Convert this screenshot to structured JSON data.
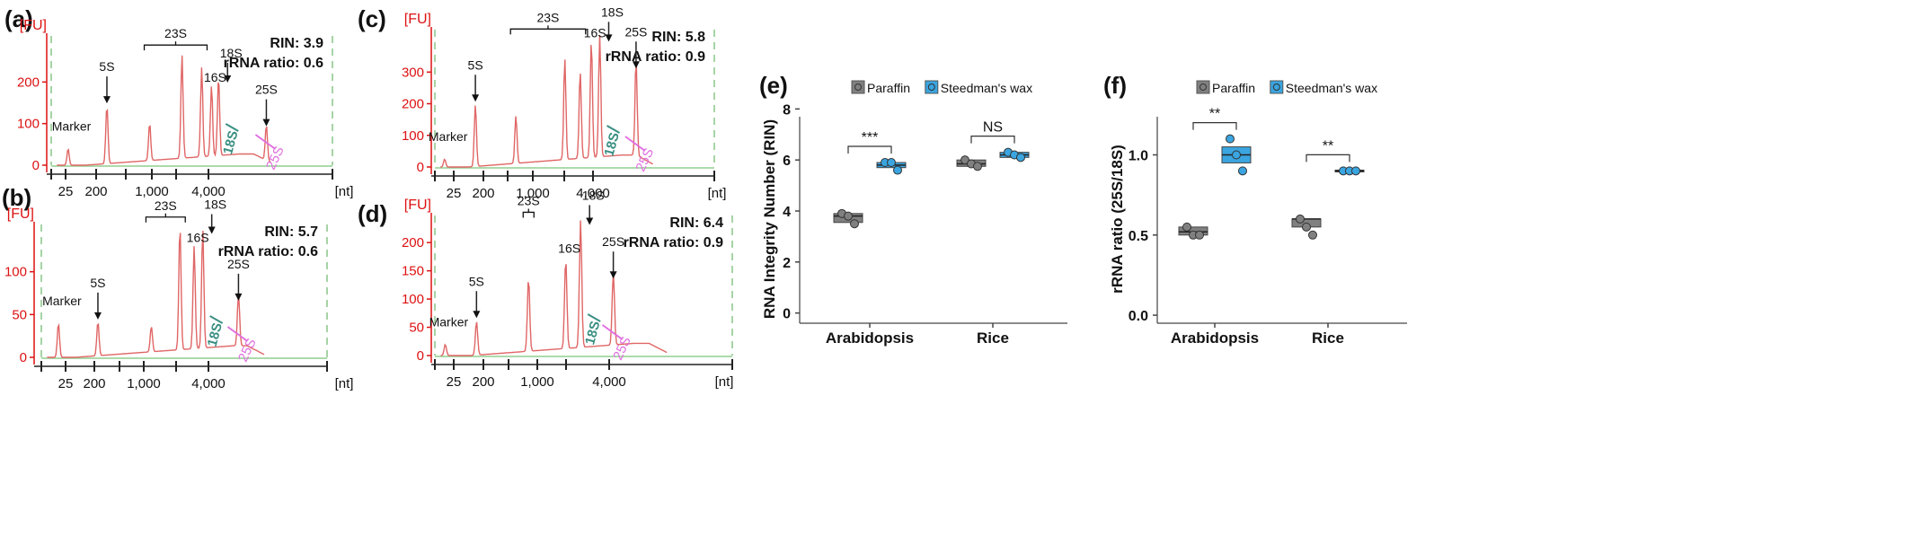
{
  "colors": {
    "trace": "#e06666",
    "fu_axis": "#dd1111",
    "baseline": "#8fcf8f",
    "ladder_dash": "#88c688",
    "label_18s": "#3a8f83",
    "label_25s": "#e070e0",
    "paraffin": "#808080",
    "steedman": "#3aa5e0",
    "axis": "#222222"
  },
  "chart_data": [
    {
      "type": "line",
      "panel": "(a)",
      "y_unit": "[FU]",
      "x_unit": "[nt]",
      "x_ticks": [
        "25",
        "200",
        "1,000",
        "4,000"
      ],
      "yticks": [
        0,
        100,
        200
      ],
      "ylim": [
        0,
        300
      ],
      "rin_text": "RIN: 3.9",
      "ratio_text": "rRNA ratio: 0.6",
      "labels": {
        "marker": "Marker",
        "s5": "5S",
        "s23": "23S",
        "s16": "16S",
        "s18": "18S",
        "s25": "25S",
        "g18": "18S",
        "g25": "25S"
      },
      "peaks": [
        [
          0.06,
          40
        ],
        [
          0.198,
          140
        ],
        [
          0.35,
          90
        ],
        [
          0.465,
          250
        ],
        [
          0.535,
          215
        ],
        [
          0.57,
          170
        ],
        [
          0.595,
          190
        ],
        [
          0.765,
          85
        ]
      ]
    },
    {
      "type": "line",
      "panel": "(b)",
      "y_unit": "[FU]",
      "x_unit": "[nt]",
      "x_ticks": [
        "25",
        "200",
        "1,000",
        "4,000"
      ],
      "yticks": [
        0,
        50,
        100
      ],
      "ylim": [
        0,
        150
      ],
      "rin_text": "RIN: 5.7",
      "ratio_text": "rRNA ratio: 0.6",
      "labels": {
        "marker": "Marker",
        "s5": "5S",
        "s23": "23S",
        "s16": "16S",
        "s18": "18S",
        "s25": "25S",
        "g18": "18S",
        "g25": "25S"
      },
      "peaks": [
        [
          0.06,
          40
        ],
        [
          0.198,
          40
        ],
        [
          0.385,
          30
        ],
        [
          0.485,
          145
        ],
        [
          0.535,
          120
        ],
        [
          0.565,
          140
        ],
        [
          0.69,
          62
        ]
      ]
    },
    {
      "type": "line",
      "panel": "(c)",
      "y_unit": "[FU]",
      "x_unit": "[nt]",
      "x_ticks": [
        "25",
        "200",
        "1,000",
        "4,000"
      ],
      "yticks": [
        0,
        100,
        200,
        300
      ],
      "ylim": [
        0,
        420
      ],
      "rin_text": "RIN: 5.8",
      "ratio_text": "rRNA ratio: 0.9",
      "labels": {
        "marker": "Marker",
        "s5": "5S",
        "s23": "23S",
        "s16": "16S",
        "s18": "18S",
        "s25": "25S",
        "g18": "18S",
        "g25": "25S"
      },
      "peaks": [
        [
          0.035,
          25
        ],
        [
          0.145,
          195
        ],
        [
          0.29,
          150
        ],
        [
          0.465,
          320
        ],
        [
          0.52,
          275
        ],
        [
          0.56,
          370
        ],
        [
          0.59,
          385
        ],
        [
          0.72,
          300
        ]
      ]
    },
    {
      "type": "line",
      "panel": "(d)",
      "y_unit": "[FU]",
      "x_unit": "[nt]",
      "x_ticks": [
        "25",
        "200",
        "1,000",
        "4,000"
      ],
      "yticks": [
        0,
        50,
        100,
        150,
        200
      ],
      "ylim": [
        0,
        240
      ],
      "rin_text": "RIN: 6.4",
      "ratio_text": "rRNA ratio: 0.9",
      "labels": {
        "marker": "Marker",
        "s5": "5S",
        "s23": "23S",
        "s16": "16S",
        "s18": "18S",
        "s25": "25S",
        "g18": "18S",
        "g25": "25S"
      },
      "peaks": [
        [
          0.035,
          20
        ],
        [
          0.14,
          60
        ],
        [
          0.315,
          130
        ],
        [
          0.44,
          160
        ],
        [
          0.49,
          225
        ],
        [
          0.6,
          130
        ]
      ]
    },
    {
      "type": "box",
      "panel": "(e)",
      "legend": [
        "Paraffin",
        "Steedman's wax"
      ],
      "legend_position": "top",
      "ylabel": "RNA Integrity Number (RIN)",
      "categories": [
        "Arabidopsis",
        "Rice"
      ],
      "ylim": [
        -0.4,
        8.4
      ],
      "yticks": [
        0,
        2,
        4,
        6,
        8
      ],
      "series": [
        {
          "name": "Paraffin",
          "color": "#808080",
          "points": [
            [
              3.9,
              3.8,
              3.5
            ],
            [
              6.0,
              5.85,
              5.75
            ]
          ],
          "box": [
            [
              3.55,
              3.8,
              3.9
            ],
            [
              5.75,
              5.85,
              6.0
            ]
          ]
        },
        {
          "name": "Steedman's wax",
          "color": "#3aa5e0",
          "points": [
            [
              5.9,
              5.9,
              5.6
            ],
            [
              6.3,
              6.2,
              6.1
            ]
          ],
          "box": [
            [
              5.7,
              5.8,
              5.9
            ],
            [
              6.1,
              6.2,
              6.3
            ]
          ]
        }
      ],
      "significance": [
        "***",
        "NS"
      ]
    },
    {
      "type": "box",
      "panel": "(f)",
      "legend": [
        "Paraffin",
        "Steedman's wax"
      ],
      "legend_position": "top",
      "ylabel": "rRNA ratio (25S/18S)",
      "categories": [
        "Arabidopsis",
        "Rice"
      ],
      "ylim": [
        -0.05,
        1.35
      ],
      "yticks": [
        0.0,
        0.5,
        1.0
      ],
      "ytick_labels": [
        "0.0",
        "0.5",
        "1.0"
      ],
      "series": [
        {
          "name": "Paraffin",
          "color": "#808080",
          "points": [
            [
              0.55,
              0.5,
              0.5
            ],
            [
              0.6,
              0.55,
              0.5
            ]
          ],
          "box": [
            [
              0.5,
              0.52,
              0.55
            ],
            [
              0.55,
              0.6,
              0.6
            ]
          ]
        },
        {
          "name": "Steedman's wax",
          "color": "#3aa5e0",
          "points": [
            [
              1.1,
              1.0,
              0.9
            ],
            [
              0.9,
              0.9,
              0.9
            ]
          ],
          "box": [
            [
              0.95,
              1.0,
              1.05
            ],
            [
              0.895,
              0.9,
              0.905
            ]
          ]
        }
      ],
      "significance": [
        "**",
        "**"
      ]
    }
  ]
}
